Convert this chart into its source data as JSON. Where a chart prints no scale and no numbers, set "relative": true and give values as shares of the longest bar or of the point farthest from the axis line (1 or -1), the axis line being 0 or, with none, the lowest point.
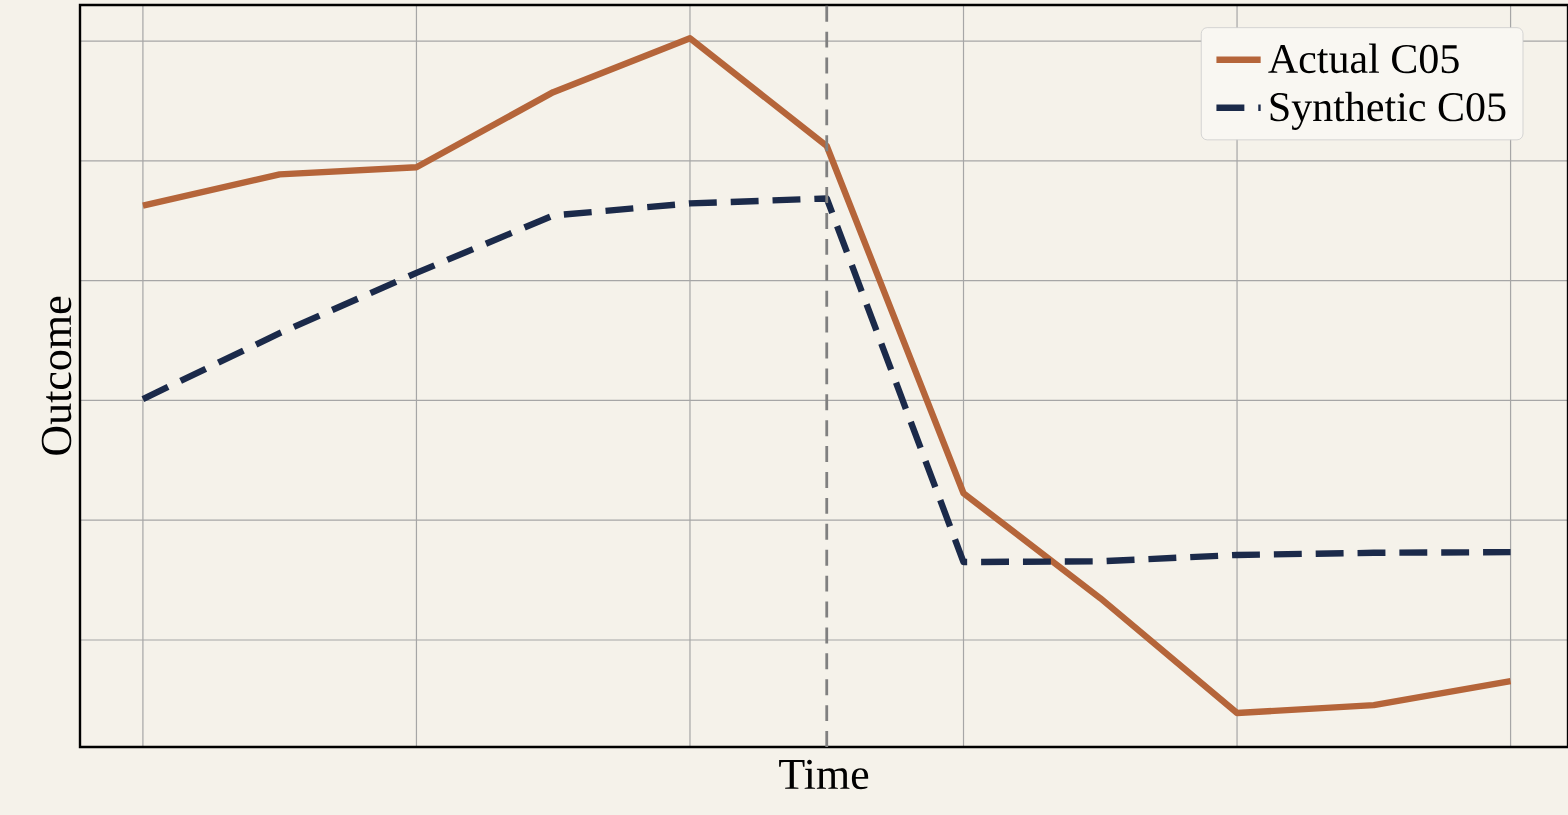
{
  "chart_data": {
    "type": "line",
    "relative": true,
    "xlabel": "Time",
    "ylabel": "Outcome",
    "categories": [
      null,
      null,
      null,
      null,
      null,
      null,
      null,
      null,
      null,
      null,
      null
    ],
    "series": [
      {
        "name": "Actual C05",
        "color": "#b5653a",
        "line_style": "solid",
        "values": [
          0.764,
          0.808,
          0.818,
          0.924,
          1.0,
          0.848,
          0.358,
          0.21,
          0.048,
          0.059,
          0.093
        ]
      },
      {
        "name": "Synthetic C05",
        "color": "#1b2a4a",
        "line_style": "dashed",
        "values": [
          0.491,
          0.584,
          0.669,
          0.75,
          0.767,
          0.774,
          0.261,
          0.262,
          0.271,
          0.274,
          0.275
        ]
      }
    ],
    "grid": true,
    "legend": "top right",
    "marker": "none"
  }
}
